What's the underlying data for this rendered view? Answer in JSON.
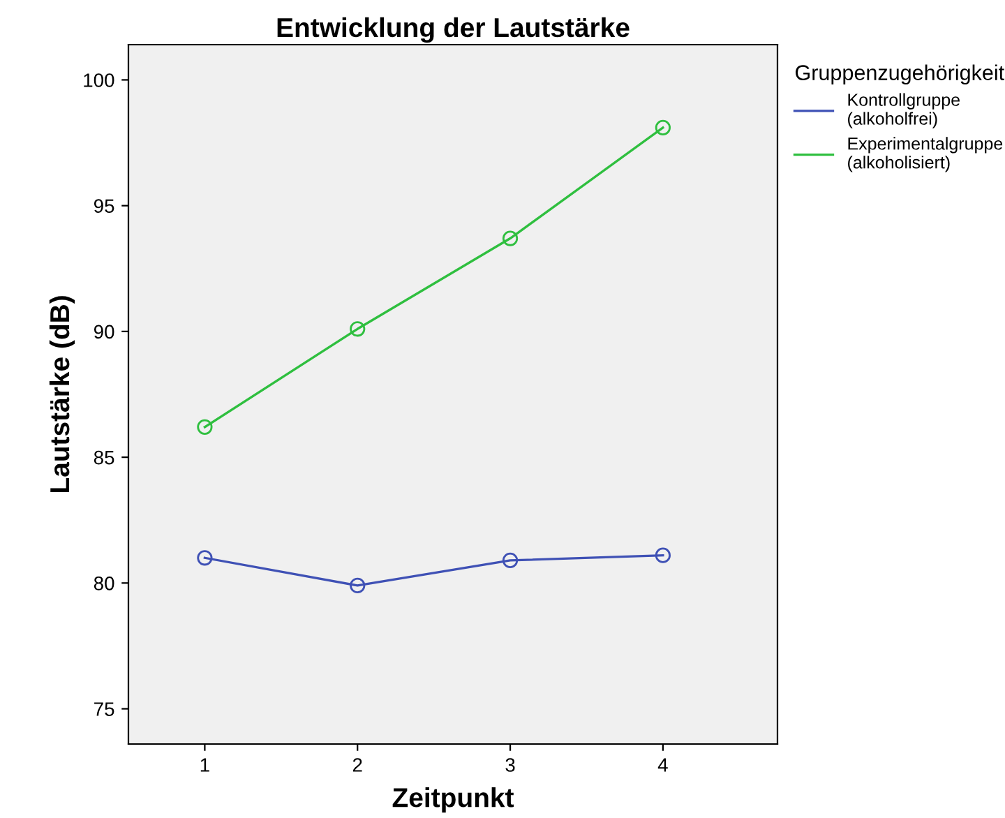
{
  "chart_data": {
    "type": "line",
    "title": "Entwicklung der Lautstärke",
    "xlabel": "Zeitpunkt",
    "ylabel": "Lautstärke (dB)",
    "legend_title": "Gruppenzugehörigkeit",
    "x": [
      1,
      2,
      3,
      4
    ],
    "series": [
      {
        "name": "Kontrollgruppe\n(alkoholfrei)",
        "color": "#3f51b5",
        "values": [
          81.0,
          79.9,
          80.9,
          81.1
        ]
      },
      {
        "name": "Experimentalgruppe\n(alkoholisiert)",
        "color": "#2fbf3f",
        "values": [
          86.2,
          90.1,
          93.7,
          98.1
        ]
      }
    ],
    "xlim": [
      0.5,
      4.75
    ],
    "xticks": [
      1,
      2,
      3,
      4
    ],
    "ylim": [
      73.6,
      101.4
    ],
    "yticks": [
      75,
      80,
      85,
      90,
      95,
      100
    ],
    "grid": false,
    "legend": "top right",
    "marker": "circle",
    "line_style": "solid"
  }
}
